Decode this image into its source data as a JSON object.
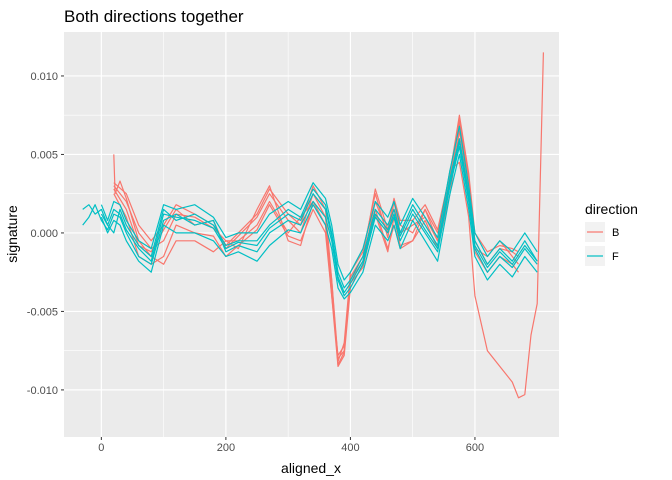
{
  "chart_data": {
    "type": "line",
    "title": "Both directions together",
    "xlabel": "aligned_x",
    "ylabel": "signature",
    "xlim": [
      -60,
      735
    ],
    "ylim": [
      -0.013,
      0.0128
    ],
    "x_ticks": [
      0,
      200,
      400,
      600
    ],
    "x_tick_labels": [
      "0",
      "200",
      "400",
      "600"
    ],
    "y_ticks": [
      -0.01,
      -0.005,
      0.0,
      0.005,
      0.01
    ],
    "y_tick_labels": [
      "-0.010",
      "-0.005",
      "0.000",
      "0.005",
      "0.010"
    ],
    "grid": true,
    "background": "#ebebeb",
    "legend": {
      "title": "direction",
      "position": "right",
      "entries": [
        {
          "label": "B",
          "color": "#F8766D"
        },
        {
          "label": "F",
          "color": "#00BFC4"
        }
      ]
    },
    "series": [
      {
        "direction": "B",
        "color": "#F8766D",
        "x": [
          20,
          22,
          30,
          40,
          60,
          80,
          100,
          120,
          150,
          180,
          200,
          220,
          250,
          270,
          300,
          320,
          340,
          360,
          370,
          380,
          390,
          400,
          420,
          440,
          460,
          470,
          480,
          500,
          520,
          540,
          560,
          575,
          590,
          600,
          620,
          640,
          660,
          670,
          680,
          690,
          700,
          710
        ],
        "y": [
          0.005,
          0.0025,
          0.0033,
          0.0022,
          -0.0005,
          -0.0015,
          -0.002,
          -0.0005,
          -0.0005,
          -0.0012,
          -0.0005,
          -0.001,
          0.0015,
          0.003,
          -0.0005,
          -0.0008,
          0.002,
          0.0005,
          -0.004,
          -0.0085,
          -0.0078,
          -0.0035,
          -0.002,
          0.0015,
          -0.001,
          0.0005,
          -0.001,
          -0.0005,
          0.0015,
          -0.0005,
          0.004,
          0.0045,
          0.001,
          -0.004,
          -0.0075,
          -0.0085,
          -0.0095,
          -0.0105,
          -0.0103,
          -0.0065,
          -0.0045,
          0.0115
        ]
      },
      {
        "direction": "B",
        "color": "#F8766D",
        "x": [
          20,
          40,
          60,
          80,
          100,
          120,
          150,
          180,
          200,
          220,
          250,
          270,
          300,
          320,
          340,
          360,
          370,
          380,
          390,
          400,
          420,
          440,
          460,
          470,
          480,
          500,
          520,
          540,
          560,
          575,
          590,
          600,
          620,
          640,
          660,
          670
        ],
        "y": [
          0.003,
          0.002,
          0.0,
          -0.001,
          -0.0005,
          0.0012,
          0.001,
          0.0003,
          -0.0005,
          -0.0005,
          0.0005,
          0.002,
          0.0,
          0.001,
          0.002,
          0.0005,
          -0.003,
          -0.008,
          -0.0075,
          -0.003,
          -0.0018,
          0.002,
          0.0,
          0.0015,
          0.0005,
          0.0,
          0.0015,
          0.0,
          0.003,
          0.007,
          0.003,
          -0.001,
          -0.0015,
          -0.0005,
          -0.0015,
          -0.002
        ]
      },
      {
        "direction": "B",
        "color": "#F8766D",
        "x": [
          20,
          40,
          60,
          80,
          100,
          120,
          150,
          180,
          200,
          220,
          250,
          270,
          300,
          320,
          340,
          360,
          370,
          380,
          390,
          400,
          420,
          440,
          460,
          470,
          480,
          500,
          520,
          540,
          560,
          575,
          590,
          600,
          620,
          640,
          660,
          670
        ],
        "y": [
          0.0028,
          0.0015,
          -0.0008,
          -0.0012,
          0.0002,
          0.0015,
          0.0005,
          0.0008,
          -0.001,
          -0.0002,
          0.001,
          0.0025,
          0.0008,
          0.0,
          0.0025,
          0.001,
          -0.0035,
          -0.0082,
          -0.007,
          -0.0025,
          -0.0012,
          0.0025,
          -0.0003,
          0.002,
          0.0,
          0.0005,
          0.001,
          -0.0005,
          0.0035,
          0.0072,
          0.0035,
          -0.0005,
          -0.002,
          -0.001,
          -0.0012,
          -0.0015
        ]
      },
      {
        "direction": "B",
        "color": "#F8766D",
        "x": [
          20,
          40,
          60,
          80,
          100,
          120,
          150,
          180,
          200,
          220,
          250,
          270,
          300,
          320,
          340,
          360,
          370,
          380,
          390,
          400,
          420,
          440,
          460,
          470,
          480,
          500,
          520,
          540,
          560,
          575,
          590,
          600,
          620,
          640,
          660,
          670
        ],
        "y": [
          0.0025,
          0.001,
          -0.0015,
          -0.002,
          -0.0015,
          0.0005,
          0.0,
          -0.0002,
          -0.0015,
          -0.0008,
          0.0002,
          0.0018,
          -0.0002,
          -0.0005,
          0.0015,
          0.0,
          -0.004,
          -0.0078,
          -0.0072,
          -0.0032,
          -0.0022,
          0.0012,
          -0.0012,
          0.001,
          -0.0008,
          -0.0005,
          0.0008,
          -0.001,
          0.0025,
          0.0065,
          0.0028,
          -0.0012,
          -0.0025,
          -0.0015,
          -0.002,
          -0.0025
        ]
      },
      {
        "direction": "B",
        "color": "#F8766D",
        "x": [
          20,
          40,
          60,
          80,
          100,
          120,
          150,
          180,
          200,
          220,
          250,
          270,
          300,
          320,
          340,
          360,
          370,
          380,
          390,
          400,
          420,
          440,
          460,
          470,
          480,
          500,
          520,
          540,
          560,
          575,
          590,
          600,
          620,
          640,
          660,
          670
        ],
        "y": [
          0.0032,
          0.0025,
          0.0005,
          -0.0005,
          0.0005,
          0.0018,
          0.0012,
          0.0005,
          -0.0008,
          0.0,
          0.0012,
          0.0028,
          0.0012,
          0.0005,
          0.003,
          0.0015,
          -0.003,
          -0.0084,
          -0.0076,
          -0.0028,
          -0.0015,
          0.0028,
          0.0002,
          0.0022,
          0.0008,
          0.0008,
          0.0018,
          0.0002,
          0.0038,
          0.0075,
          0.0038,
          0.0,
          -0.0012,
          -0.0008,
          -0.001,
          -0.0012
        ]
      },
      {
        "direction": "F",
        "color": "#00BFC4",
        "x": [
          -30,
          -20,
          -10,
          0,
          10,
          20,
          30,
          40,
          60,
          80,
          100,
          120,
          150,
          180,
          200,
          220,
          250,
          270,
          300,
          320,
          340,
          360,
          370,
          380,
          390,
          400,
          420,
          440,
          460,
          470,
          480,
          500,
          520,
          540,
          560,
          575,
          590,
          600,
          620,
          640,
          660,
          680,
          700
        ],
        "y": [
          0.0015,
          0.0018,
          0.0012,
          0.0015,
          0.0005,
          0.0,
          0.0015,
          0.0005,
          -0.0008,
          -0.0015,
          0.0015,
          0.0008,
          0.0012,
          0.0005,
          -0.0008,
          -0.0005,
          -0.0005,
          0.0005,
          0.0015,
          0.001,
          0.0028,
          0.0018,
          0.0,
          -0.0025,
          -0.0035,
          -0.003,
          -0.0015,
          0.0015,
          0.0005,
          0.0015,
          0.0,
          0.0018,
          0.0005,
          -0.0008,
          0.0035,
          0.006,
          0.0025,
          -0.0005,
          -0.002,
          -0.001,
          -0.0018,
          -0.0005,
          -0.0018
        ]
      },
      {
        "direction": "F",
        "color": "#00BFC4",
        "x": [
          -30,
          -20,
          -10,
          0,
          10,
          20,
          30,
          40,
          60,
          80,
          100,
          120,
          150,
          180,
          200,
          220,
          250,
          270,
          300,
          320,
          340,
          360,
          370,
          380,
          390,
          400,
          420,
          440,
          460,
          470,
          480,
          500,
          520,
          540,
          560,
          575,
          590,
          600,
          620,
          640,
          660,
          680,
          700
        ],
        "y": [
          0.0005,
          0.001,
          0.0018,
          0.0008,
          0.0002,
          0.0012,
          0.001,
          0.0,
          -0.0015,
          -0.002,
          0.0008,
          0.0012,
          0.0005,
          0.0008,
          -0.0012,
          -0.0008,
          -0.0012,
          0.0,
          0.0008,
          0.0005,
          0.002,
          0.001,
          -0.0005,
          -0.003,
          -0.004,
          -0.0035,
          -0.002,
          0.001,
          0.0,
          0.001,
          -0.0005,
          0.0012,
          0.0,
          -0.0012,
          0.003,
          0.0055,
          0.002,
          -0.001,
          -0.0025,
          -0.0015,
          -0.0022,
          -0.001,
          -0.002
        ]
      },
      {
        "direction": "F",
        "color": "#00BFC4",
        "x": [
          0,
          10,
          20,
          30,
          40,
          60,
          80,
          100,
          120,
          150,
          180,
          200,
          220,
          250,
          270,
          300,
          320,
          340,
          360,
          370,
          380,
          390,
          400,
          420,
          440,
          460,
          470,
          480,
          500,
          520,
          540,
          560,
          575,
          590,
          600,
          620,
          640,
          660,
          680,
          700
        ],
        "y": [
          0.0018,
          0.0008,
          0.002,
          0.0018,
          0.0008,
          -0.0005,
          -0.001,
          0.0018,
          0.0015,
          0.0018,
          0.001,
          -0.0003,
          0.0,
          0.0,
          0.0012,
          0.002,
          0.0015,
          0.0032,
          0.0022,
          0.0005,
          -0.002,
          -0.003,
          -0.0025,
          -0.001,
          0.002,
          0.001,
          0.002,
          0.0005,
          0.0022,
          0.001,
          -0.0003,
          0.004,
          0.0068,
          0.003,
          0.0,
          -0.0015,
          -0.0005,
          -0.0012,
          0.0,
          -0.0012
        ]
      },
      {
        "direction": "F",
        "color": "#00BFC4",
        "x": [
          0,
          10,
          20,
          30,
          40,
          60,
          80,
          100,
          120,
          150,
          180,
          200,
          220,
          250,
          270,
          300,
          320,
          340,
          360,
          370,
          380,
          390,
          400,
          420,
          440,
          460,
          470,
          480,
          500,
          520,
          540,
          560,
          575,
          590,
          600,
          620,
          640,
          660,
          680,
          700
        ],
        "y": [
          0.001,
          0.0,
          0.0008,
          0.0005,
          -0.0005,
          -0.0018,
          -0.0025,
          0.0005,
          0.0,
          0.0,
          -0.0005,
          -0.0015,
          -0.0012,
          -0.0018,
          -0.0008,
          0.0002,
          0.0,
          0.0018,
          0.0005,
          -0.001,
          -0.0035,
          -0.0042,
          -0.0038,
          -0.0025,
          0.0005,
          -0.0005,
          0.0005,
          -0.001,
          0.0008,
          -0.0005,
          -0.0018,
          0.0025,
          0.005,
          0.0015,
          -0.0015,
          -0.003,
          -0.002,
          -0.0028,
          -0.0015,
          -0.0025
        ]
      },
      {
        "direction": "F",
        "color": "#00BFC4",
        "x": [
          0,
          10,
          20,
          30,
          40,
          60,
          80,
          100,
          120,
          150,
          180,
          200,
          220,
          250,
          270,
          300,
          320,
          340,
          360,
          370,
          380,
          390,
          400,
          420,
          440,
          460,
          470,
          480,
          500,
          520,
          540,
          560,
          575,
          590,
          600,
          620,
          640,
          660,
          680,
          700
        ],
        "y": [
          0.0012,
          0.0005,
          0.0015,
          0.0012,
          0.0002,
          -0.001,
          -0.0018,
          0.0012,
          0.001,
          0.0008,
          0.0003,
          -0.001,
          -0.0006,
          -0.0008,
          0.0003,
          0.0012,
          0.0008,
          0.0025,
          0.0015,
          -0.0002,
          -0.0028,
          -0.0038,
          -0.0032,
          -0.0018,
          0.0012,
          0.0002,
          0.0012,
          -0.0002,
          0.0015,
          0.0002,
          -0.001,
          0.0032,
          0.0058,
          0.0022,
          -0.0008,
          -0.0022,
          -0.0012,
          -0.002,
          -0.0008,
          -0.0018
        ]
      }
    ]
  }
}
